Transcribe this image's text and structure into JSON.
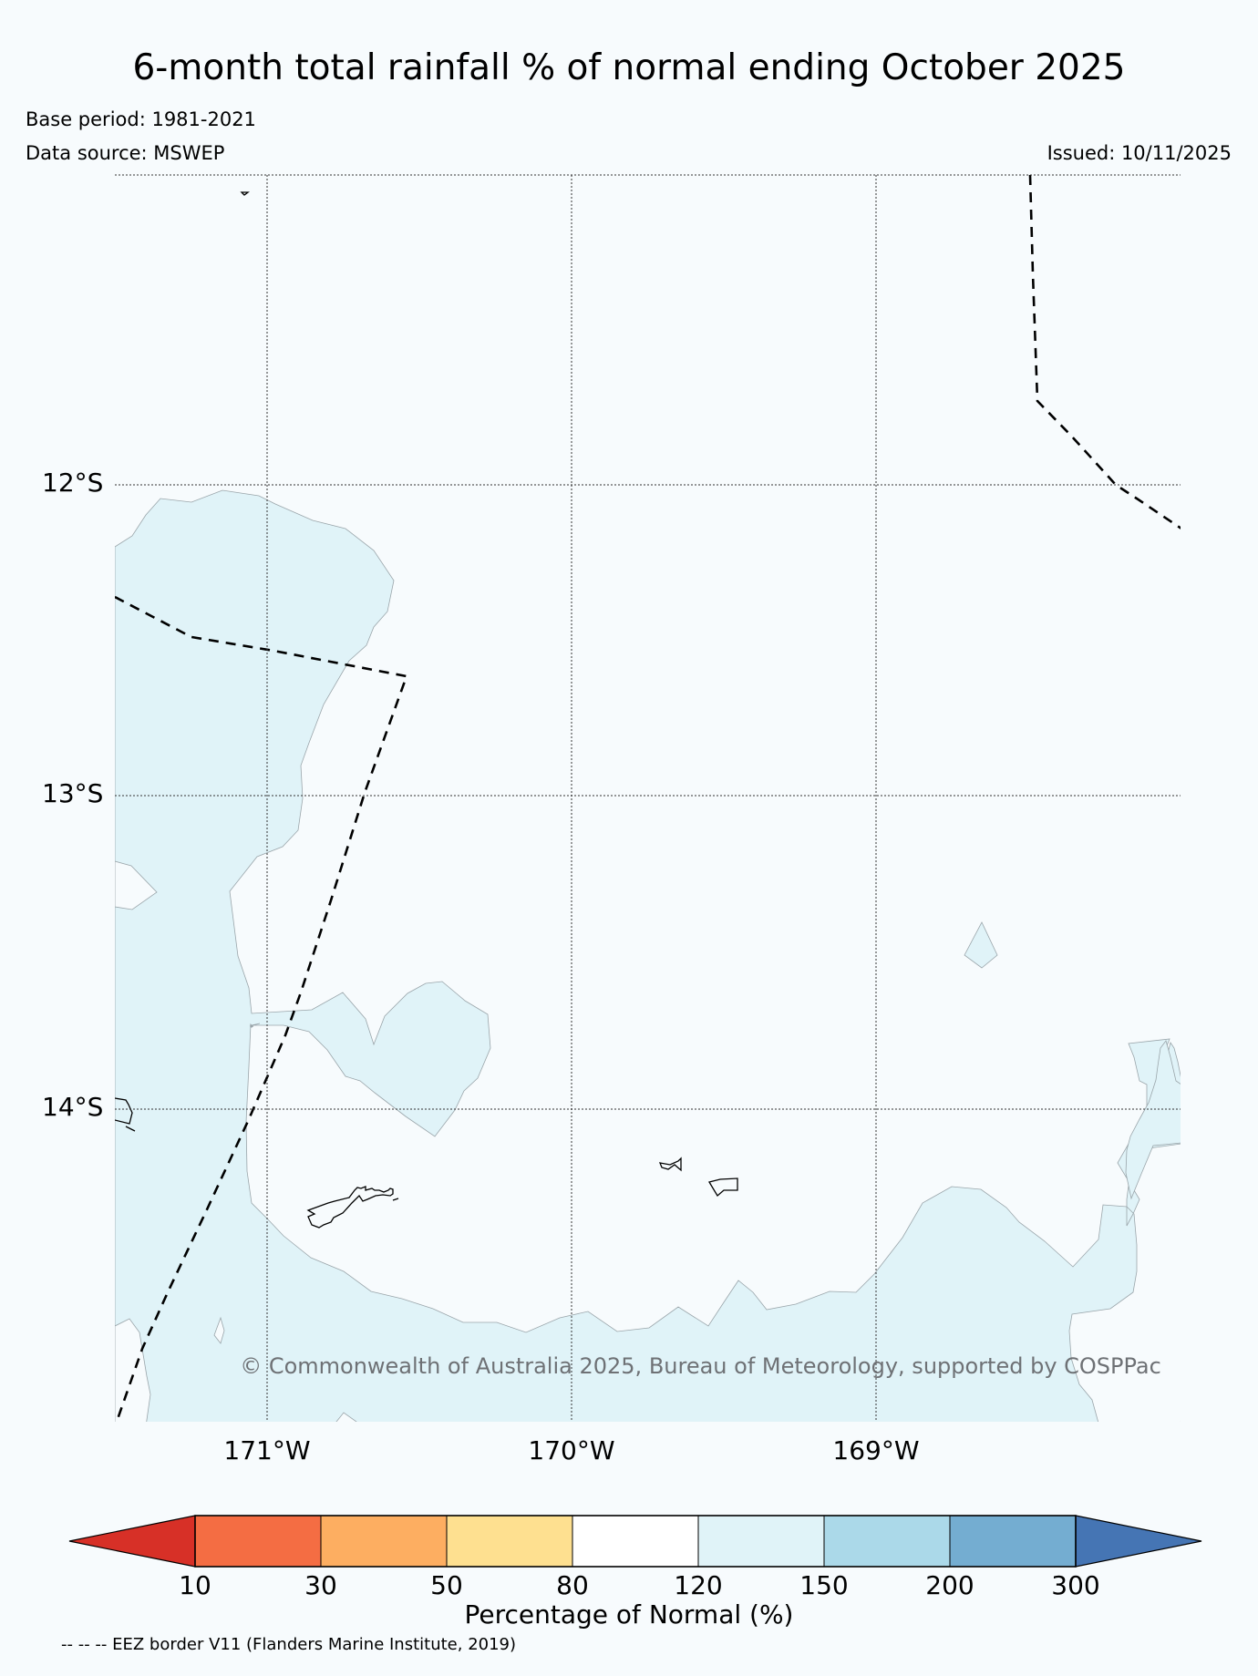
{
  "title": "6-month total rainfall % of normal ending October 2025",
  "base_period": "Base period: 1981-2021",
  "data_source": "Data source: MSWEP",
  "issued": "Issued: 10/11/2025",
  "copyright": "© Commonwealth of Australia 2025, Bureau of Meteorology, supported by COSPPac",
  "map": {
    "lat_labels": [
      "12°S",
      "13°S",
      "14°S"
    ],
    "lon_labels": [
      "171°W",
      "170°W",
      "169°W"
    ]
  },
  "legend": {
    "title": "Percentage of Normal (%)",
    "ticks": [
      "10",
      "30",
      "50",
      "80",
      "120",
      "150",
      "200",
      "300"
    ],
    "colors": [
      "#d73027",
      "#f46d43",
      "#fdae61",
      "#fee090",
      "#ffffff",
      "#e0f3f8",
      "#abd9e9",
      "#74add1",
      "#4575b4"
    ]
  },
  "eez_note": "-- -- -- EEZ border V11 (Flanders Marine Institute, 2019)",
  "colors": {
    "background": "#f7fbfd",
    "wet_region": "#e0f3f8"
  }
}
